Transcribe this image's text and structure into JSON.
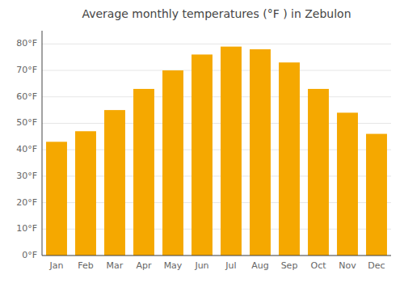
{
  "chart_data": {
    "type": "bar",
    "title": "Average monthly temperatures (°F ) in Zebulon",
    "categories": [
      "Jan",
      "Feb",
      "Mar",
      "Apr",
      "May",
      "Jun",
      "Jul",
      "Aug",
      "Sep",
      "Oct",
      "Nov",
      "Dec"
    ],
    "values": [
      43,
      47,
      55,
      63,
      70,
      76,
      79,
      78,
      73,
      63,
      54,
      46
    ],
    "color": "#F5A800",
    "ylim": [
      0,
      85
    ],
    "yticks": [
      {
        "value": 0,
        "label": "0°F"
      },
      {
        "value": 10,
        "label": "10°F"
      },
      {
        "value": 20,
        "label": "20°F"
      },
      {
        "value": 30,
        "label": "30°F"
      },
      {
        "value": 40,
        "label": "40°F"
      },
      {
        "value": 50,
        "label": "50°F"
      },
      {
        "value": 60,
        "label": "60°F"
      },
      {
        "value": 70,
        "label": "70°F"
      },
      {
        "value": 80,
        "label": "80°F"
      }
    ],
    "grid": true
  }
}
